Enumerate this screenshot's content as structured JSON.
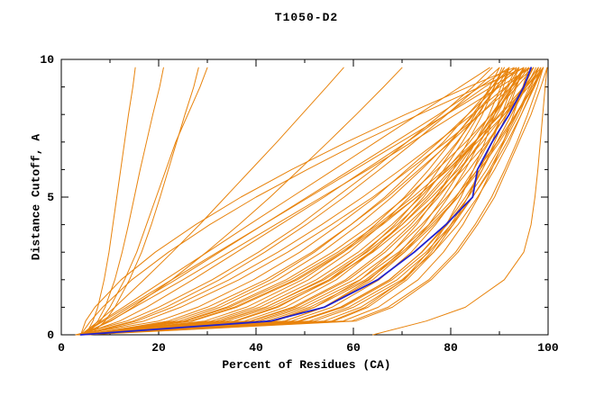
{
  "chart_data": {
    "type": "line",
    "title": "T1050-D2",
    "xlabel": "Percent of Residues (CA)",
    "ylabel": "Distance Cutoff, A",
    "xlim": [
      0,
      100
    ],
    "ylim": [
      0,
      10
    ],
    "x_ticks": [
      0,
      20,
      40,
      60,
      80,
      100
    ],
    "x_minor_ticks": [
      10,
      30,
      50,
      70,
      90
    ],
    "y_ticks": [
      0,
      5,
      10
    ],
    "y_minor_ticks": [
      1,
      2,
      3,
      4,
      6,
      7,
      8,
      9
    ],
    "grid": false,
    "legend": "none",
    "colors": {
      "axis": "#000000",
      "background": "#ffffff",
      "model": "#e8830c",
      "highlight": "#2121cd"
    },
    "y_grid": [
      0,
      0.5,
      1,
      2,
      3,
      4,
      5,
      6,
      7,
      8,
      9,
      9.7
    ],
    "series": [
      {
        "color": "model",
        "x": [
          4,
          57.9,
          65.1,
          73.3,
          78.5,
          82.5,
          85.7,
          88.4,
          90.8,
          92.9,
          94.8,
          96
        ]
      },
      {
        "color": "model",
        "x": [
          4,
          59.7,
          67.1,
          75.5,
          81,
          85,
          88.4,
          91.1,
          93.6,
          95.8,
          97.8,
          99
        ]
      },
      {
        "color": "model",
        "x": [
          4,
          55.6,
          62.4,
          70.3,
          75.3,
          79.1,
          82.1,
          84.7,
          87,
          89,
          90.8,
          92
        ]
      },
      {
        "color": "model",
        "x": [
          4,
          48.7,
          57.3,
          67.4,
          74.1,
          79.3,
          83.6,
          87.4,
          90.7,
          93.6,
          96.2,
          98
        ]
      },
      {
        "color": "model",
        "x": [
          4,
          47.3,
          55.6,
          65.3,
          71.9,
          76.9,
          81.1,
          84.7,
          87.9,
          90.7,
          93.3,
          95
        ]
      },
      {
        "color": "model",
        "x": [
          4,
          45.9,
          53.9,
          63.3,
          69.6,
          74.5,
          78.5,
          82.1,
          85.1,
          87.9,
          90.3,
          92
        ]
      },
      {
        "color": "model",
        "x": [
          4,
          49.2,
          57.9,
          68,
          74.9,
          80.1,
          84.5,
          88.3,
          91.6,
          94.5,
          97.2,
          99
        ]
      },
      {
        "color": "model",
        "x": [
          4,
          40,
          48.9,
          60.2,
          67.9,
          74,
          79.2,
          83.8,
          87.8,
          91.4,
          94.8,
          97
        ]
      },
      {
        "color": "model",
        "x": [
          4,
          38.8,
          47.5,
          58.4,
          65.8,
          71.8,
          76.8,
          81.2,
          85.1,
          88.6,
          91.8,
          94
        ]
      },
      {
        "color": "model",
        "x": [
          4,
          40.8,
          49.9,
          61.4,
          69.3,
          75.5,
          80.9,
          85.5,
          89.6,
          93.3,
          96.7,
          99
        ]
      },
      {
        "color": "model",
        "x": [
          4,
          37.7,
          46,
          56.5,
          63.8,
          69.5,
          74.4,
          78.6,
          82.4,
          85.8,
          88.9,
          91
        ]
      },
      {
        "color": "model",
        "x": [
          4,
          32.7,
          41.9,
          54,
          62.8,
          70,
          76.1,
          81.6,
          86.5,
          91,
          95.2,
          98
        ]
      },
      {
        "color": "model",
        "x": [
          4,
          31.8,
          40.7,
          52.4,
          61,
          67.9,
          73.8,
          79.1,
          83.9,
          88.3,
          92.3,
          95
        ]
      },
      {
        "color": "model",
        "x": [
          4,
          30.8,
          39.5,
          50.8,
          59.1,
          65.8,
          71.5,
          76.6,
          81.3,
          85.5,
          89.4,
          92
        ]
      },
      {
        "color": "model",
        "x": [
          4,
          25.1,
          33.9,
          46.2,
          55.7,
          63.7,
          70.8,
          77.2,
          83.1,
          88.4,
          93.6,
          97
        ]
      },
      {
        "color": "model",
        "x": [
          4,
          24.2,
          32.6,
          44.4,
          53.5,
          61.1,
          67.9,
          74,
          79.7,
          84.8,
          89.7,
          93
        ]
      },
      {
        "color": "model",
        "x": [
          4,
          25.6,
          34.5,
          47.1,
          56.8,
          65,
          72.2,
          78.8,
          84.8,
          90.3,
          95.5,
          99
        ]
      },
      {
        "color": "model",
        "x": [
          4,
          15.5,
          22.8,
          34.5,
          44.5,
          53.5,
          61.9,
          69.7,
          77.2,
          84.4,
          91.3,
          96
        ]
      },
      {
        "color": "model",
        "x": [
          4,
          14.8,
          21.5,
          32.5,
          41.8,
          50.3,
          58.1,
          65.4,
          72.5,
          79.2,
          85.6,
          90
        ]
      },
      {
        "color": "model",
        "x": [
          4,
          8.7,
          13.4,
          22.7,
          32.1,
          41.5,
          50.9,
          60.3,
          69.7,
          79.1,
          88.4,
          95
        ]
      },
      {
        "color": "model",
        "x": [
          4,
          8.3,
          12.7,
          21.3,
          30,
          38.6,
          47.3,
          56,
          64.6,
          73.3,
          81.9,
          88
        ]
      },
      {
        "color": "model",
        "x": [
          4,
          5,
          6.9,
          12.3,
          19.3,
          27.6,
          36.9,
          47.3,
          58.6,
          70.7,
          83.6,
          93
        ]
      },
      {
        "color": "model",
        "x": [
          4,
          7.7,
          11,
          17,
          22.8,
          28.4,
          33.7,
          39,
          44.3,
          49.4,
          54.5,
          58
        ]
      },
      {
        "color": "model",
        "x": [
          4,
          10.2,
          14.7,
          22.7,
          29.8,
          36.5,
          42.9,
          48.9,
          54.8,
          60.6,
          66.2,
          70
        ]
      },
      {
        "color": "model",
        "x": [
          5,
          6.5,
          7.5,
          8.8,
          9.8,
          10.6,
          11.4,
          12.2,
          13,
          13.8,
          14.7,
          15.2
        ]
      },
      {
        "color": "model",
        "x": [
          5,
          7.5,
          9,
          11,
          12.5,
          13.8,
          15,
          16.2,
          17.5,
          18.8,
          20.2,
          21
        ]
      },
      {
        "color": "model",
        "x": [
          6,
          9,
          11,
          14,
          16.5,
          18.5,
          20.3,
          22,
          23.7,
          25.4,
          27.2,
          28.2
        ]
      },
      {
        "color": "model",
        "x": [
          64,
          75,
          83,
          91,
          95,
          96.5,
          97.3,
          97.9,
          98.4,
          98.9,
          99.4,
          99.8
        ]
      },
      {
        "color": "model",
        "x": [
          3,
          56,
          63,
          71,
          76.5,
          80.5,
          83.5,
          86,
          88.5,
          90.5,
          92.5,
          94
        ]
      },
      {
        "color": "model",
        "x": [
          5,
          60.5,
          68,
          76,
          81.5,
          85.5,
          89,
          91.5,
          94,
          96.5,
          98.5,
          99.8
        ]
      },
      {
        "color": "model",
        "x": [
          4,
          51,
          59,
          69,
          75.5,
          80.5,
          84.5,
          88,
          91,
          94,
          96.5,
          98
        ]
      },
      {
        "color": "model",
        "x": [
          5,
          46,
          54,
          64,
          70.5,
          75.5,
          79.5,
          83,
          86,
          89,
          91.5,
          93.5
        ]
      },
      {
        "color": "model",
        "x": [
          3,
          44,
          52,
          61.5,
          68,
          73,
          77,
          80.5,
          83.5,
          86.5,
          89,
          90.5
        ]
      },
      {
        "color": "model",
        "x": [
          4,
          42,
          51,
          62.5,
          70,
          76,
          81.5,
          86,
          90,
          93.5,
          97,
          99
        ]
      },
      {
        "color": "model",
        "x": [
          5,
          39,
          48,
          59,
          66.5,
          72.5,
          77.5,
          82,
          86,
          89.5,
          92.5,
          95
        ]
      },
      {
        "color": "model",
        "x": [
          3,
          36,
          44.5,
          55,
          62.5,
          68.5,
          73.5,
          77.5,
          81.5,
          85,
          88,
          90
        ]
      },
      {
        "color": "model",
        "x": [
          4,
          34,
          43,
          55,
          64,
          71,
          77,
          82.5,
          87.5,
          91.5,
          95.5,
          98.5
        ]
      },
      {
        "color": "model",
        "x": [
          5,
          33,
          42,
          53.5,
          62,
          69,
          75,
          80,
          85,
          89,
          93,
          96
        ]
      },
      {
        "color": "model",
        "x": [
          3,
          29.5,
          38,
          49.5,
          58,
          64.5,
          70.5,
          75.5,
          80,
          84.5,
          88.5,
          91
        ]
      },
      {
        "color": "model",
        "x": [
          4,
          27,
          36,
          48.5,
          58,
          66,
          73,
          79.5,
          85,
          90,
          95,
          98
        ]
      },
      {
        "color": "model",
        "x": [
          4,
          23,
          31.5,
          43,
          52,
          59.5,
          66.5,
          72.5,
          78.5,
          83.5,
          88.5,
          92
        ]
      },
      {
        "color": "model",
        "x": [
          5,
          26.5,
          35.5,
          48,
          57.5,
          65.5,
          73,
          79.5,
          85.5,
          91,
          96,
          99
        ]
      },
      {
        "color": "model",
        "x": [
          4,
          17,
          24.5,
          36.5,
          46.5,
          55.5,
          64,
          71.5,
          79,
          86,
          92.5,
          97
        ]
      },
      {
        "color": "model",
        "x": [
          3,
          13.5,
          20,
          31,
          40.5,
          49,
          56.5,
          64,
          71,
          78,
          84.5,
          88.5
        ]
      },
      {
        "color": "model",
        "x": [
          4,
          10,
          15,
          25,
          34.5,
          44,
          53.5,
          63,
          72,
          81,
          90,
          96.5
        ]
      },
      {
        "color": "model",
        "x": [
          5,
          9.5,
          14,
          23.5,
          32.5,
          41.5,
          50.5,
          59.5,
          68.5,
          77.5,
          86,
          92
        ]
      },
      {
        "color": "model",
        "x": [
          4,
          6,
          8.5,
          14.5,
          22,
          30.5,
          40,
          50.5,
          61.5,
          73.5,
          86,
          95
        ]
      },
      {
        "color": "model",
        "x": [
          4,
          12,
          17.5,
          27,
          36,
          45,
          54,
          62.5,
          71,
          79,
          87,
          93.5
        ]
      },
      {
        "color": "model",
        "x": [
          3,
          20,
          28,
          39.5,
          49,
          57,
          64.5,
          71,
          77.5,
          83.5,
          89.5,
          94
        ]
      },
      {
        "color": "model",
        "x": [
          5,
          22,
          30,
          42,
          51.5,
          59.5,
          67,
          73.5,
          80,
          86,
          91.5,
          95.5
        ]
      },
      {
        "color": "model",
        "x": [
          4,
          35.5,
          44,
          55.5,
          63.5,
          70,
          75.5,
          80.5,
          85,
          89,
          92.5,
          95.5
        ]
      },
      {
        "color": "model",
        "x": [
          4,
          43,
          52,
          63,
          70.5,
          76.5,
          81.5,
          85.5,
          89.5,
          92.5,
          95.5,
          97.5
        ]
      },
      {
        "color": "model",
        "x": [
          5,
          52,
          60,
          70,
          76.5,
          81.5,
          85.5,
          89,
          92,
          94.5,
          97,
          98.5
        ]
      },
      {
        "color": "model",
        "x": [
          3,
          49,
          57.5,
          67.5,
          74,
          79,
          83,
          86.5,
          89.5,
          92.5,
          95,
          97
        ]
      },
      {
        "color": "model",
        "x": [
          4,
          54,
          61.5,
          70.5,
          76,
          80,
          83.5,
          86.5,
          89,
          91.5,
          93.5,
          95
        ]
      },
      {
        "color": "model",
        "x": [
          5,
          8,
          10,
          13,
          15.5,
          17.5,
          19.5,
          21.5,
          23.5,
          26,
          28.5,
          30
        ]
      },
      {
        "color": "highlight",
        "x": [
          4,
          43,
          54,
          65,
          72.5,
          79,
          84.5,
          85.5,
          88.5,
          92,
          95,
          96.5
        ]
      }
    ]
  }
}
